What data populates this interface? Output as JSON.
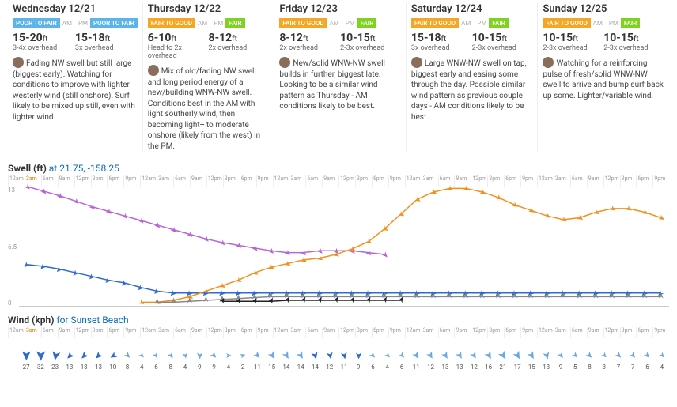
{
  "days": [
    {
      "title": "Wednesday 12/21",
      "am": {
        "rating": "POOR TO FAIR",
        "color": "#5bb5e8",
        "size": "15-20",
        "unit": "ft",
        "sub": "3-4x overhead"
      },
      "pm": {
        "rating": "POOR TO FAIR",
        "color": "#5bb5e8",
        "size": "15-18",
        "unit": "ft",
        "sub": "3x overhead"
      },
      "desc": "Fading NW swell but still large (biggest early). Watching for conditions to improve with lighter westerly wind (still onshore). Surf likely to be mixed up still, even with lighter wind."
    },
    {
      "title": "Thursday 12/22",
      "am": {
        "rating": "FAIR TO GOOD",
        "color": "#f5a623",
        "size": "6-10",
        "unit": "ft",
        "sub": "Head to 2x overhead"
      },
      "pm": {
        "rating": "FAIR",
        "color": "#7ed321",
        "size": "8-12",
        "unit": "ft",
        "sub": "2x overhead"
      },
      "desc": "Mix of old/fading NW swell and long period energy of a new/building WNW-NW swell. Conditions best in the AM with light southerly wind, then becoming light+ to moderate onshore (likely from the west) in the PM."
    },
    {
      "title": "Friday 12/23",
      "am": {
        "rating": "FAIR TO GOOD",
        "color": "#f5a623",
        "size": "8-12",
        "unit": "ft",
        "sub": "2x overhead"
      },
      "pm": {
        "rating": "FAIR",
        "color": "#7ed321",
        "size": "10-15",
        "unit": "ft",
        "sub": "2-3x overhead"
      },
      "desc": "New/solid WNW-NW swell builds in further, biggest late. Looking to be a similar wind pattern as Thursday - AM conditions likely to be best."
    },
    {
      "title": "Saturday 12/24",
      "am": {
        "rating": "FAIR TO GOOD",
        "color": "#f5a623",
        "size": "15-18",
        "unit": "ft",
        "sub": "3x overhead"
      },
      "pm": {
        "rating": "FAIR",
        "color": "#7ed321",
        "size": "10-15",
        "unit": "ft",
        "sub": "2-3x overhead"
      },
      "desc": "Large WNW-NW swell on tap, biggest early and easing some through the day. Possible similar wind pattern as previous couple days - AM conditions likely to be best."
    },
    {
      "title": "Sunday 12/25",
      "am": {
        "rating": "FAIR TO GOOD",
        "color": "#f5a623",
        "size": "10-15",
        "unit": "ft",
        "sub": "2-3x overhead"
      },
      "pm": {
        "rating": "FAIR",
        "color": "#7ed321",
        "size": "10-15",
        "unit": "ft",
        "sub": "2-3x overhead"
      },
      "desc": "Watching for a reinforcing pulse of fresh/solid WNW-NW swell to arrive and bump surf back up some. Lighter/variable wind."
    }
  ],
  "swell": {
    "title": "Swell (ft)",
    "location": "at 21.75, -158.25",
    "ymax": 13,
    "yticks": [
      13,
      6.5,
      0
    ],
    "time_labels": [
      "12am",
      "3am",
      "6am",
      "9am",
      "12pm",
      "3pm",
      "6pm",
      "9pm",
      "12am",
      "3am",
      "6am",
      "9am",
      "12pm",
      "3pm",
      "6pm",
      "9pm",
      "12am",
      "3am",
      "6am",
      "9am",
      "12pm",
      "3pm",
      "6pm",
      "9pm",
      "12am",
      "3am",
      "6am",
      "9am",
      "12pm",
      "3pm",
      "6pm",
      "9pm",
      "12am",
      "3am",
      "6am",
      "9am",
      "12pm",
      "3pm",
      "6pm",
      "9pm"
    ],
    "highlight_idx": 1,
    "series": [
      {
        "name": "primary-nw",
        "color": "#b565d8",
        "marker": "arrow",
        "angle": 135,
        "y": [
          13.0,
          12.5,
          12.0,
          11.4,
          10.8,
          10.3,
          9.8,
          9.3,
          8.8,
          8.3,
          7.8,
          7.3,
          6.9,
          6.6,
          6.3,
          6.0,
          5.8,
          5.8,
          6.0,
          6.0,
          6.0,
          5.8,
          5.6,
          null,
          null,
          null,
          null,
          null,
          null,
          null,
          null,
          null,
          null,
          null,
          null,
          null,
          null,
          null,
          null,
          null
        ]
      },
      {
        "name": "secondary-ne",
        "color": "#2d6bd1",
        "marker": "arrow",
        "angle": 225,
        "y": [
          4.5,
          4.3,
          4.0,
          3.6,
          3.2,
          2.8,
          2.5,
          2.0,
          1.6,
          1.4,
          1.4,
          1.4,
          1.4,
          1.4,
          1.4,
          1.4,
          1.4,
          1.4,
          1.4,
          1.4,
          1.4,
          1.4,
          1.4,
          1.4,
          1.4,
          1.4,
          1.4,
          1.4,
          1.4,
          1.4,
          1.4,
          1.4,
          1.4,
          1.4,
          1.4,
          1.4,
          1.4,
          1.4,
          1.4,
          1.4
        ]
      },
      {
        "name": "new-wnw",
        "color": "#f3901d",
        "marker": "arrow",
        "angle": 120,
        "y": [
          null,
          null,
          null,
          null,
          null,
          null,
          null,
          0.4,
          0.4,
          0.6,
          1.0,
          1.6,
          2.2,
          2.8,
          3.6,
          4.2,
          4.6,
          5.0,
          5.2,
          5.6,
          6.2,
          7.0,
          8.4,
          10.0,
          11.6,
          12.4,
          12.8,
          12.8,
          12.4,
          11.8,
          11.0,
          10.4,
          9.8,
          9.4,
          9.6,
          10.2,
          10.6,
          10.6,
          10.2,
          9.6
        ]
      },
      {
        "name": "south",
        "color": "#888888",
        "marker": "arrow",
        "angle": 0,
        "y": [
          null,
          null,
          null,
          null,
          null,
          null,
          null,
          null,
          0.4,
          0.4,
          0.5,
          0.6,
          0.7,
          0.8,
          0.9,
          1.0,
          1.0,
          1.0,
          1.0,
          1.0,
          1.0,
          1.0,
          1.0,
          1.0,
          1.0,
          1.0,
          1.0,
          1.0,
          1.0,
          1.0,
          1.0,
          1.0,
          1.0,
          1.0,
          1.0,
          1.0,
          1.0,
          1.0,
          1.0,
          1.0
        ]
      },
      {
        "name": "other",
        "color": "#222222",
        "marker": "arrow",
        "angle": 30,
        "y": [
          null,
          null,
          null,
          null,
          null,
          null,
          null,
          null,
          null,
          null,
          null,
          null,
          0.5,
          0.5,
          0.5,
          0.5,
          0.6,
          0.6,
          0.6,
          0.6,
          0.6,
          0.6,
          0.6,
          0.6,
          null,
          null,
          null,
          null,
          null,
          null,
          null,
          null,
          null,
          null,
          null,
          null,
          null,
          null,
          null,
          null
        ]
      }
    ]
  },
  "wind": {
    "title": "Wind (kph)",
    "location": "for Sunset Beach",
    "colors": {
      "base": "#2d6bd1",
      "alt": "#6aa9e8"
    },
    "points": [
      {
        "v": 27,
        "a": 90,
        "c": "base"
      },
      {
        "v": 32,
        "a": 90,
        "c": "base"
      },
      {
        "v": 23,
        "a": 100,
        "c": "base"
      },
      {
        "v": 13,
        "a": 135,
        "c": "base"
      },
      {
        "v": 13,
        "a": 135,
        "c": "base"
      },
      {
        "v": 13,
        "a": 135,
        "c": "base"
      },
      {
        "v": 10,
        "a": 150,
        "c": "base"
      },
      {
        "v": 8,
        "a": 45,
        "c": "alt"
      },
      {
        "v": 4,
        "a": 45,
        "c": "alt"
      },
      {
        "v": 6,
        "a": 60,
        "c": "alt"
      },
      {
        "v": 8,
        "a": 60,
        "c": "alt"
      },
      {
        "v": 4,
        "a": 80,
        "c": "alt"
      },
      {
        "v": 9,
        "a": 90,
        "c": "alt"
      },
      {
        "v": 9,
        "a": 45,
        "c": "alt"
      },
      {
        "v": 4,
        "a": 0,
        "c": "alt"
      },
      {
        "v": 2,
        "a": 340,
        "c": "alt"
      },
      {
        "v": 11,
        "a": 45,
        "c": "alt"
      },
      {
        "v": 15,
        "a": 60,
        "c": "alt"
      },
      {
        "v": 14,
        "a": 60,
        "c": "alt"
      },
      {
        "v": 14,
        "a": 60,
        "c": "alt"
      },
      {
        "v": 14,
        "a": 75,
        "c": "base"
      },
      {
        "v": 12,
        "a": 80,
        "c": "base"
      },
      {
        "v": 11,
        "a": 80,
        "c": "base"
      },
      {
        "v": 9,
        "a": 90,
        "c": "base"
      },
      {
        "v": 6,
        "a": 45,
        "c": "alt"
      },
      {
        "v": 4,
        "a": 45,
        "c": "alt"
      },
      {
        "v": 6,
        "a": 45,
        "c": "alt"
      },
      {
        "v": 11,
        "a": 60,
        "c": "alt"
      },
      {
        "v": 12,
        "a": 60,
        "c": "alt"
      },
      {
        "v": 13,
        "a": 60,
        "c": "alt"
      },
      {
        "v": 13,
        "a": 60,
        "c": "alt"
      },
      {
        "v": 12,
        "a": 60,
        "c": "alt"
      },
      {
        "v": 16,
        "a": 60,
        "c": "alt"
      },
      {
        "v": 21,
        "a": 60,
        "c": "alt"
      },
      {
        "v": 17,
        "a": 60,
        "c": "alt"
      },
      {
        "v": 15,
        "a": 60,
        "c": "alt"
      },
      {
        "v": 13,
        "a": 75,
        "c": "alt"
      },
      {
        "v": 9,
        "a": 60,
        "c": "alt"
      },
      {
        "v": 5,
        "a": 45,
        "c": "alt"
      },
      {
        "v": 8,
        "a": 45,
        "c": "alt"
      },
      {
        "v": 3,
        "a": 45,
        "c": "alt"
      },
      {
        "v": 7,
        "a": 45,
        "c": "alt"
      },
      {
        "v": 7,
        "a": 45,
        "c": "alt"
      },
      {
        "v": 6,
        "a": 45,
        "c": "alt"
      },
      {
        "v": 4,
        "a": 45,
        "c": "alt"
      }
    ]
  }
}
